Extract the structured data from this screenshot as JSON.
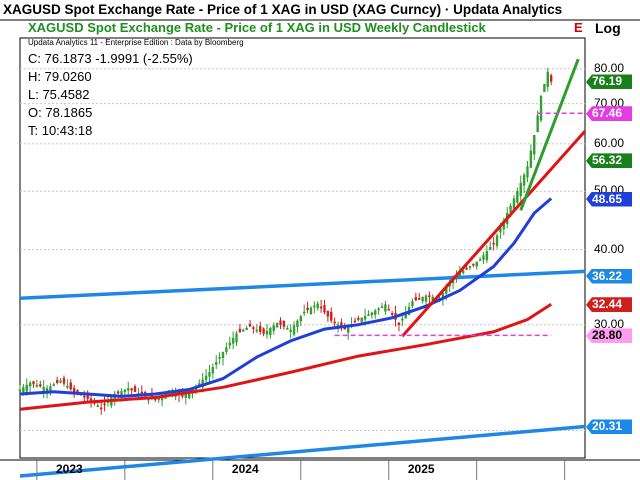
{
  "title": "XAGUSD Spot Exchange Rate - Price of 1 XAG in USD (XAG Curncy) · Updata Analytics",
  "subtitle": "XAGUSD Spot Exchange Rate - Price of 1 XAG in USD Weekly Candlestick",
  "subtitle_suffix": "E",
  "edition": "Updata Analytics 11 - Enterprise Edition : Data by Bloomberg",
  "ohlc": {
    "close": "C: 76.1873  -1.9991 (-2.55%)",
    "high": "H: 79.0260",
    "low": "L: 75.4582",
    "open": "O: 78.1865",
    "time": "T: 10:43:18"
  },
  "axis_label": "Log",
  "colors": {
    "up": "#2e9e2e",
    "down": "#d01f1f",
    "ma_blue": "#1f3fd8",
    "ma_red": "#e01414",
    "channel": "#1e88e5",
    "trend_green": "#2e9e2e",
    "magenta": "#e040e0"
  },
  "chart_data": {
    "type": "candlestick",
    "scale": "log",
    "ylim": [
      18,
      90
    ],
    "yticks": [
      20,
      30,
      40,
      50,
      60,
      70,
      80
    ],
    "ytick_labels": [
      "20.00",
      "30.00",
      "40.00",
      "50.00",
      "60.00",
      "70.00",
      "80.00"
    ],
    "xlabels": [
      "2023",
      "2024",
      "2025"
    ],
    "price_path": [
      {
        "x": 0,
        "y": 23.4
      },
      {
        "x": 3,
        "y": 24.0
      },
      {
        "x": 8,
        "y": 23.5
      },
      {
        "x": 12,
        "y": 24.2
      },
      {
        "x": 16,
        "y": 23.2
      },
      {
        "x": 20,
        "y": 22.6
      },
      {
        "x": 24,
        "y": 21.8
      },
      {
        "x": 28,
        "y": 23.0
      },
      {
        "x": 32,
        "y": 23.5
      },
      {
        "x": 36,
        "y": 22.9
      },
      {
        "x": 40,
        "y": 22.5
      },
      {
        "x": 44,
        "y": 23.3
      },
      {
        "x": 48,
        "y": 22.8
      },
      {
        "x": 52,
        "y": 23.6
      },
      {
        "x": 56,
        "y": 25.0
      },
      {
        "x": 60,
        "y": 27.0
      },
      {
        "x": 64,
        "y": 29.0
      },
      {
        "x": 68,
        "y": 29.8
      },
      {
        "x": 72,
        "y": 29.0
      },
      {
        "x": 76,
        "y": 30.2
      },
      {
        "x": 80,
        "y": 29.4
      },
      {
        "x": 84,
        "y": 31.5
      },
      {
        "x": 88,
        "y": 32.5
      },
      {
        "x": 92,
        "y": 30.5
      },
      {
        "x": 96,
        "y": 29.5
      },
      {
        "x": 100,
        "y": 30.6
      },
      {
        "x": 104,
        "y": 31.4
      },
      {
        "x": 108,
        "y": 32.4
      },
      {
        "x": 112,
        "y": 30.0
      },
      {
        "x": 116,
        "y": 32.8
      },
      {
        "x": 120,
        "y": 33.5
      },
      {
        "x": 124,
        "y": 33.2
      },
      {
        "x": 128,
        "y": 36.0
      },
      {
        "x": 132,
        "y": 37.2
      },
      {
        "x": 136,
        "y": 38.5
      },
      {
        "x": 140,
        "y": 41.0
      },
      {
        "x": 144,
        "y": 46.0
      },
      {
        "x": 147,
        "y": 50.0
      },
      {
        "x": 150,
        "y": 55.0
      },
      {
        "x": 152,
        "y": 62.0
      },
      {
        "x": 154,
        "y": 72.0
      },
      {
        "x": 156,
        "y": 79.0
      },
      {
        "x": 157,
        "y": 76.2
      }
    ],
    "moving_average_short": [
      {
        "x": 0,
        "y": 23.0
      },
      {
        "x": 10,
        "y": 23.2
      },
      {
        "x": 20,
        "y": 23.0
      },
      {
        "x": 30,
        "y": 22.8
      },
      {
        "x": 40,
        "y": 23.0
      },
      {
        "x": 50,
        "y": 23.4
      },
      {
        "x": 60,
        "y": 24.4
      },
      {
        "x": 70,
        "y": 26.5
      },
      {
        "x": 80,
        "y": 28.2
      },
      {
        "x": 90,
        "y": 29.5
      },
      {
        "x": 100,
        "y": 30.0
      },
      {
        "x": 110,
        "y": 30.8
      },
      {
        "x": 120,
        "y": 32.2
      },
      {
        "x": 130,
        "y": 34.2
      },
      {
        "x": 140,
        "y": 37.5
      },
      {
        "x": 146,
        "y": 41.0
      },
      {
        "x": 152,
        "y": 46.0
      },
      {
        "x": 157,
        "y": 48.65
      }
    ],
    "moving_average_long": [
      {
        "x": 0,
        "y": 21.7
      },
      {
        "x": 20,
        "y": 22.3
      },
      {
        "x": 40,
        "y": 22.7
      },
      {
        "x": 60,
        "y": 23.6
      },
      {
        "x": 80,
        "y": 25.0
      },
      {
        "x": 100,
        "y": 26.6
      },
      {
        "x": 120,
        "y": 27.8
      },
      {
        "x": 140,
        "y": 29.2
      },
      {
        "x": 150,
        "y": 30.6
      },
      {
        "x": 157,
        "y": 32.44
      }
    ],
    "channel_upper": [
      {
        "x": 0,
        "y": 33.2
      },
      {
        "x": 167,
        "y": 36.8
      }
    ],
    "channel_lower": [
      {
        "x": 0,
        "y": 16.8
      },
      {
        "x": 167,
        "y": 20.31
      }
    ],
    "trendline_red": [
      {
        "x": 113,
        "y": 28.7
      },
      {
        "x": 167,
        "y": 63.0
      }
    ],
    "trendline_green": [
      {
        "x": 148,
        "y": 46.5
      },
      {
        "x": 165,
        "y": 83.0
      }
    ],
    "level_lines": [
      {
        "y": 28.8,
        "from": 93,
        "to": 157
      },
      {
        "y": 67.46,
        "from": 153,
        "to": 167
      }
    ],
    "badges": [
      {
        "label": "76.19",
        "value": 76.19,
        "bg": "#1a7f1a",
        "fg": "#ffffff"
      },
      {
        "label": "67.46",
        "value": 67.46,
        "bg": "#e23ce2",
        "fg": "#ffffff"
      },
      {
        "label": "56.32",
        "value": 56.32,
        "bg": "#1a7f1a",
        "fg": "#ffffff"
      },
      {
        "label": "48.65",
        "value": 48.65,
        "bg": "#1f3fd8",
        "fg": "#ffffff"
      },
      {
        "label": "36.22",
        "value": 36.22,
        "bg": "#1e88e5",
        "fg": "#ffffff"
      },
      {
        "label": "32.44",
        "value": 32.44,
        "bg": "#d01f1f",
        "fg": "#ffffff"
      },
      {
        "label": "28.80",
        "value": 28.8,
        "bg": "#ff9cf0",
        "fg": "#000000"
      },
      {
        "label": "20.31",
        "value": 20.31,
        "bg": "#1e88e5",
        "fg": "#ffffff"
      }
    ]
  }
}
